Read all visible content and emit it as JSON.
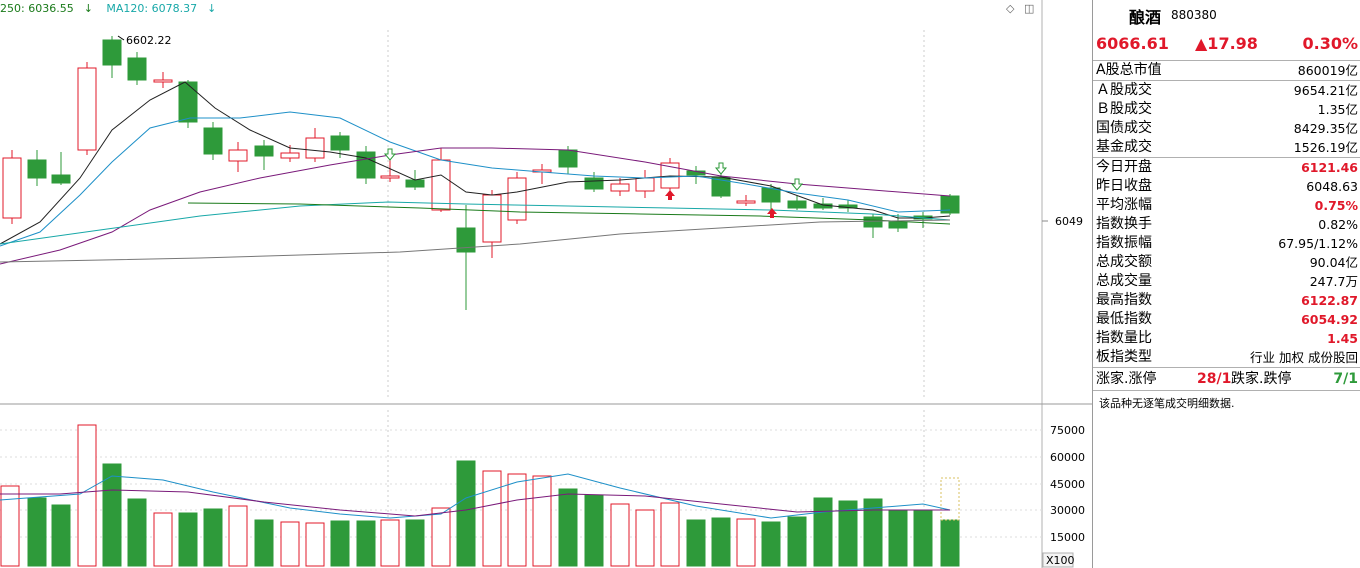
{
  "legend": {
    "ma250": "250: 6036.55",
    "ma120": "MA120: 6078.37",
    "ma250_color": "#1a7a1a",
    "ma120_color": "#18a8a8"
  },
  "chart": {
    "high_label": "6602.22",
    "price_axis_label": "6049",
    "volume_ticks": [
      "75000",
      "60000",
      "45000",
      "30000",
      "15000"
    ],
    "volume_unit": "X100",
    "up_color": "#e0182a",
    "down_color": "#2e9a3a"
  },
  "panel": {
    "name": "酿酒",
    "code": "880380",
    "price": "6066.61",
    "change": "▲17.98",
    "change_pct": "0.30%",
    "rows_group1": [
      {
        "label": "A股总市值",
        "value": "860019亿",
        "red": false
      }
    ],
    "rows_group2": [
      {
        "label": "Ａ股成交",
        "value": "9654.21亿",
        "red": false
      },
      {
        "label": "Ｂ股成交",
        "value": "1.35亿",
        "red": false
      },
      {
        "label": "国债成交",
        "value": "8429.35亿",
        "red": false
      },
      {
        "label": "基金成交",
        "value": "1526.19亿",
        "red": false
      }
    ],
    "rows_group3": [
      {
        "label": "今日开盘",
        "value": "6121.46",
        "red": true
      },
      {
        "label": "昨日收盘",
        "value": "6048.63",
        "red": false
      },
      {
        "label": "平均涨幅",
        "value": "0.75%",
        "red": true
      },
      {
        "label": "指数换手",
        "value": "0.82%",
        "red": false
      },
      {
        "label": "指数振幅",
        "value": "67.95/1.12%",
        "red": false
      },
      {
        "label": "总成交额",
        "value": "90.04亿",
        "red": false
      },
      {
        "label": "总成交量",
        "value": "247.7万",
        "red": false
      },
      {
        "label": "最高指数",
        "value": "6122.87",
        "red": true
      },
      {
        "label": "最低指数",
        "value": "6054.92",
        "red": true
      },
      {
        "label": "指数量比",
        "value": "1.45",
        "red": true
      },
      {
        "label": "板指类型",
        "value": "行业 加权 成份股回",
        "red": false
      }
    ],
    "breadth": {
      "up_label": "涨家.涨停",
      "up_value": "28/1",
      "down_label": "跌家.跌停",
      "down_value": "7/1"
    },
    "note": "该品种无逐笔成交明细数据."
  }
}
